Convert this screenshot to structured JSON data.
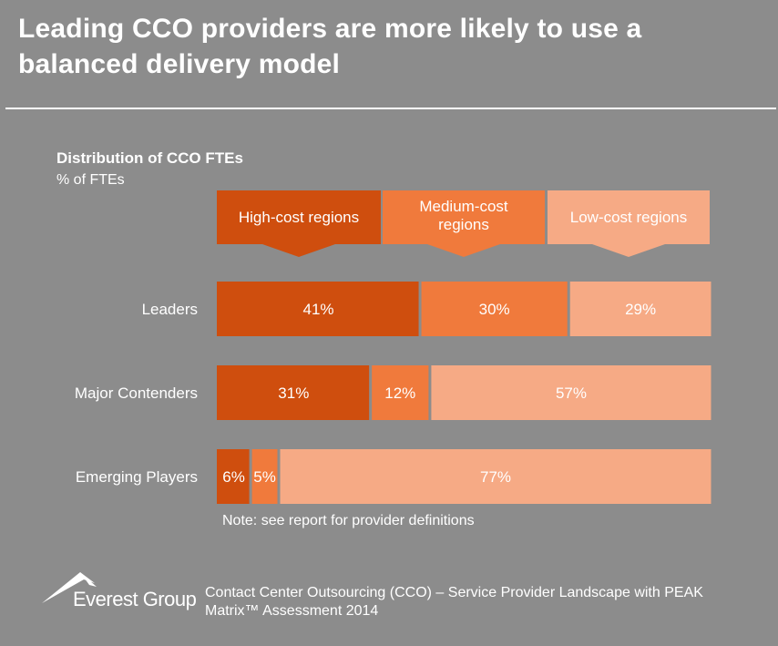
{
  "title": "Leading CCO providers are more likely to use a balanced delivery model",
  "note": "Note: see report for provider definitions",
  "brand": "Everest Group",
  "source": "Contact Center Outsourcing (CCO) – Service Provider Landscape with PEAK Matrix™ Assessment 2014",
  "colors": {
    "background": "#8c8c8c",
    "high_cost": "#cf4e0e",
    "medium_cost": "#f07a3c",
    "low_cost": "#f6aa85"
  },
  "chart_data": {
    "type": "bar",
    "orientation": "horizontal",
    "stacked": "100%",
    "title": "Distribution of CCO FTEs",
    "ylabel": "% of FTEs",
    "categories": [
      "Leaders",
      "Major Contenders",
      "Emerging Players"
    ],
    "series": [
      {
        "name": "High-cost regions",
        "values": [
          41,
          31,
          6
        ],
        "color": "#cf4e0e"
      },
      {
        "name": "Medium-cost regions",
        "values": [
          30,
          12,
          5
        ],
        "color": "#f07a3c"
      },
      {
        "name": "Low-cost regions",
        "values": [
          29,
          57,
          77
        ],
        "color": "#f6aa85"
      }
    ],
    "data_labels": [
      [
        "41%",
        "30%",
        "29%"
      ],
      [
        "31%",
        "12%",
        "57%"
      ],
      [
        "6%",
        "5%",
        "77%"
      ]
    ],
    "legend_position": "top"
  }
}
